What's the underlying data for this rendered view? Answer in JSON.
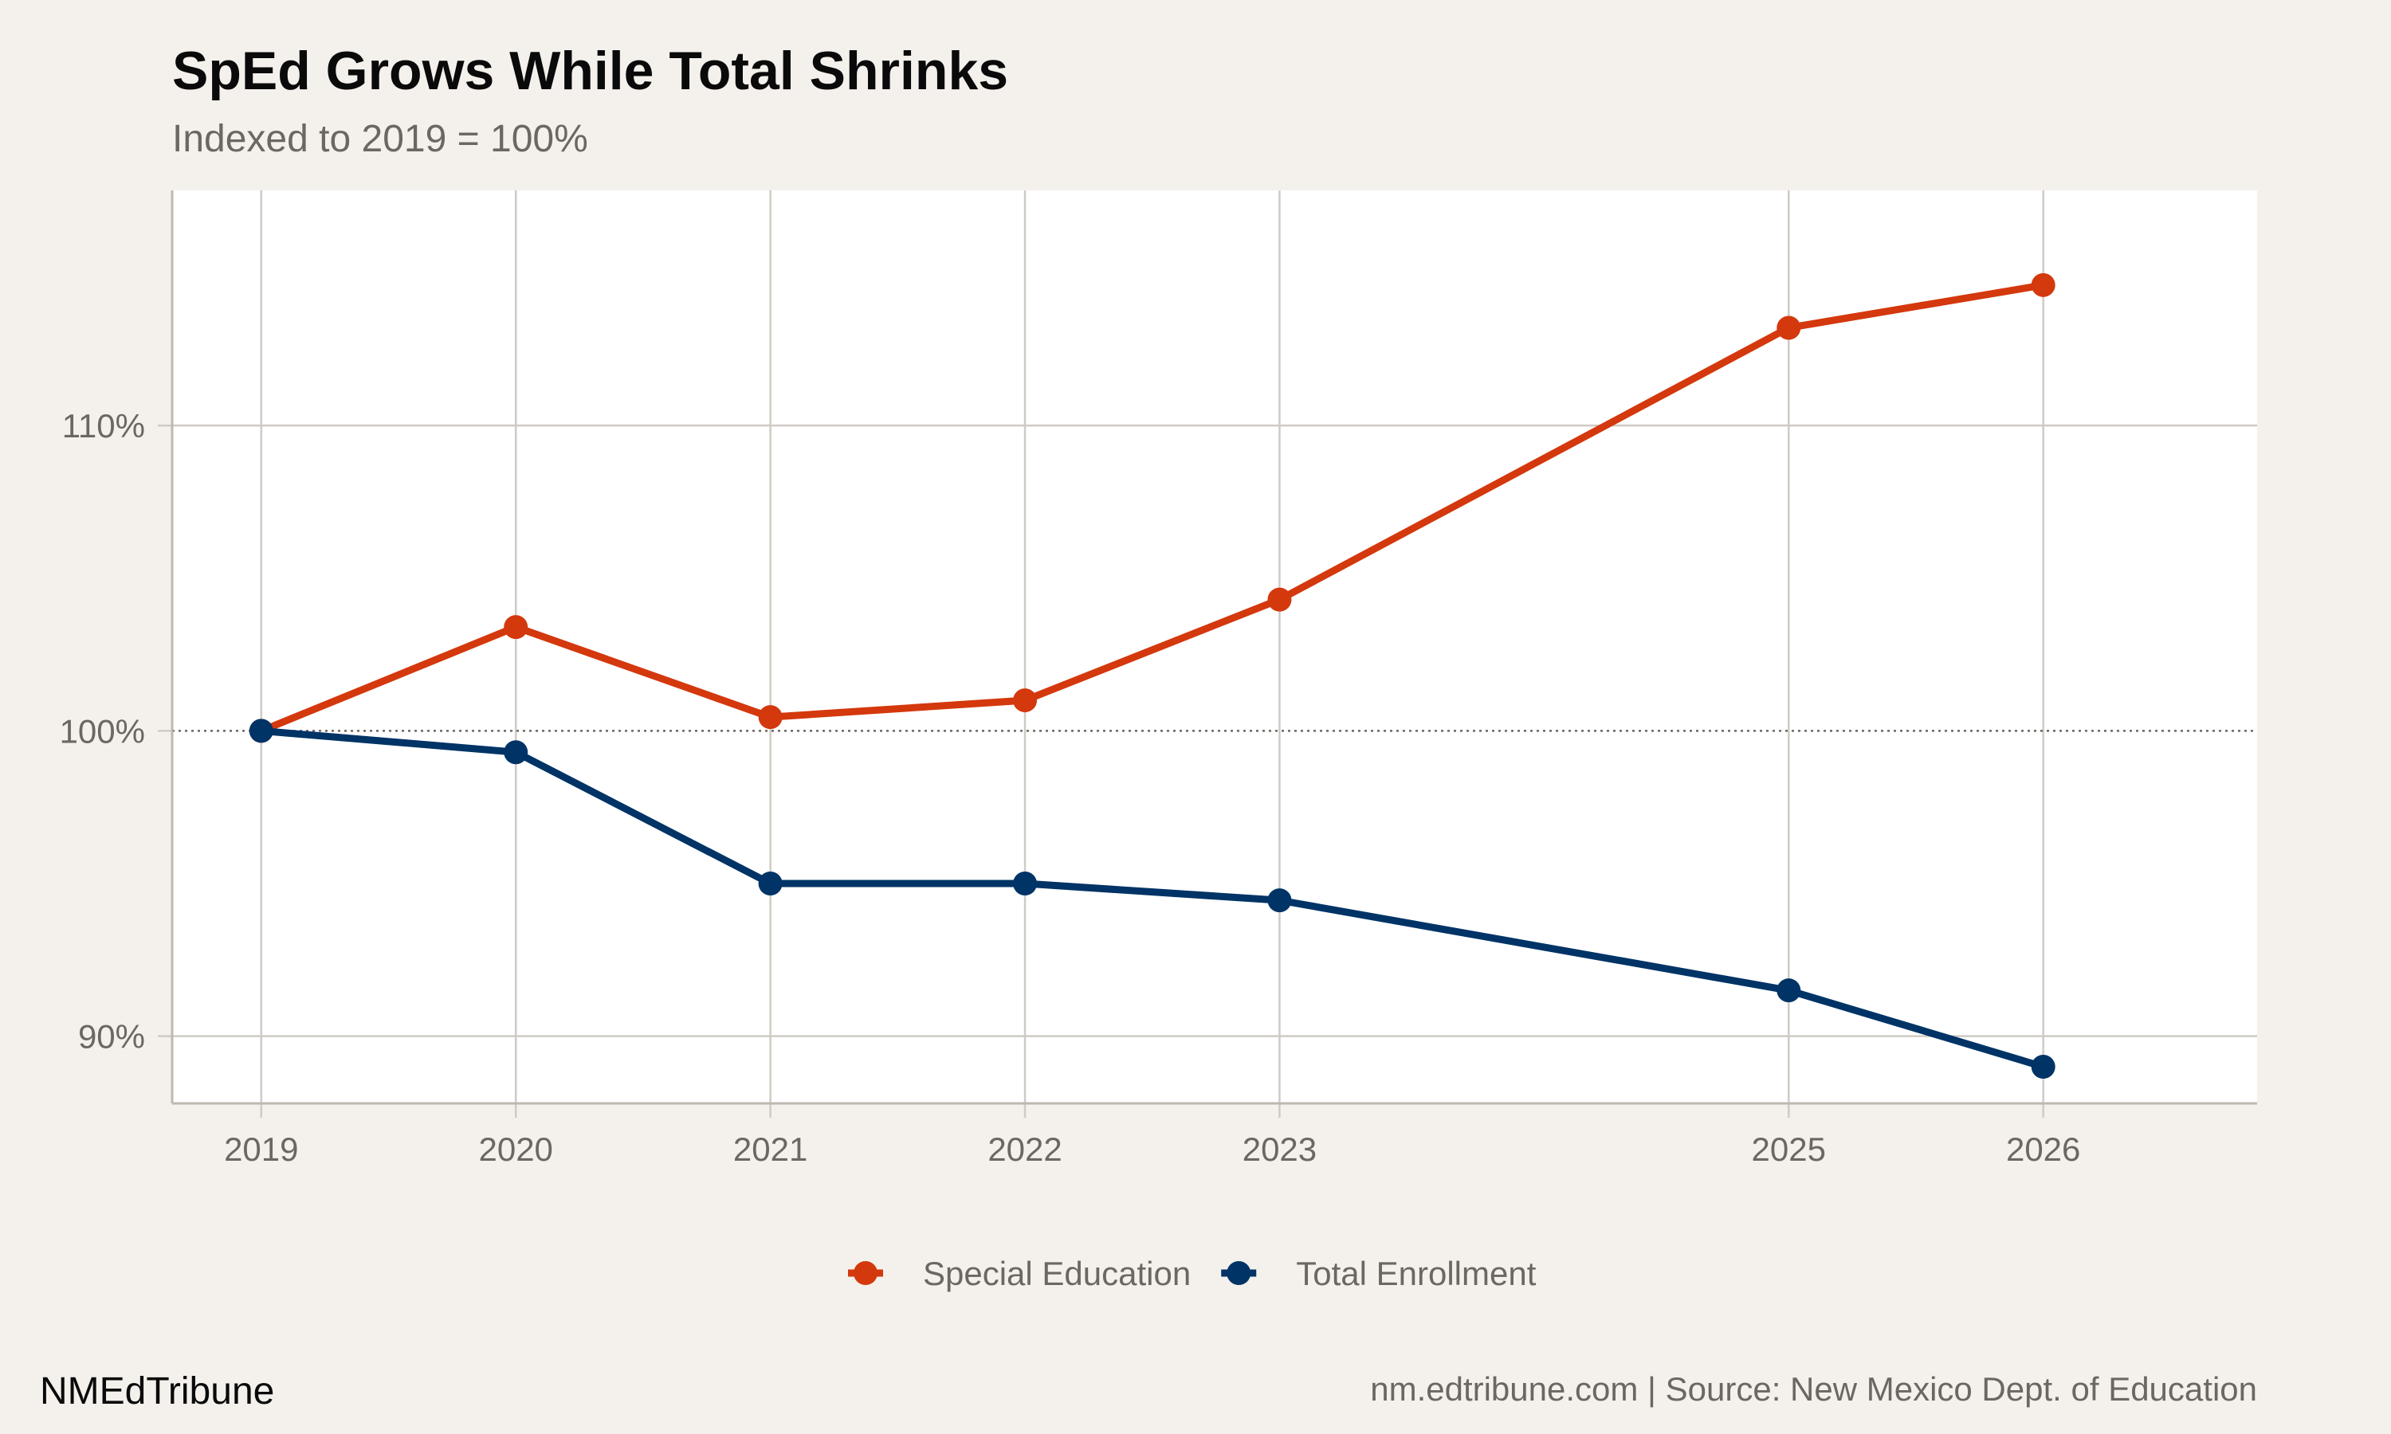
{
  "chart_data": {
    "type": "line",
    "title": "SpEd Grows While Total Shrinks",
    "subtitle": "Indexed to 2019 = 100%",
    "xlabel": "",
    "ylabel": "",
    "x": [
      2019,
      2020,
      2021,
      2022,
      2023,
      2025,
      2026
    ],
    "x_tick_labels": [
      "2019",
      "2020",
      "2021",
      "2022",
      "2023",
      "2025",
      "2026"
    ],
    "y_ticks": [
      90,
      100,
      110
    ],
    "y_tick_labels": [
      "90%",
      "100%",
      "110%"
    ],
    "xlim": [
      2018.65,
      2026.84
    ],
    "ylim": [
      87.8,
      117.7
    ],
    "grid": true,
    "reference_line": {
      "y": 100,
      "style": "dotted"
    },
    "legend_position": "bottom",
    "series": [
      {
        "name": "Special Education",
        "color": "#d4380d",
        "values": [
          100,
          103.4,
          100.45,
          101.0,
          104.3,
          113.2,
          114.6
        ]
      },
      {
        "name": "Total Enrollment",
        "color": "#003366",
        "values": [
          100,
          99.3,
          95.0,
          95.0,
          94.45,
          91.5,
          89.0
        ]
      }
    ]
  },
  "footer": {
    "brand": "NMEdTribune",
    "caption": "nm.edtribune.com | Source: New Mexico Dept. of Education"
  },
  "colors": {
    "background": "#f4f1ec",
    "panel": "#ffffff",
    "grid": "#cfcbc4"
  }
}
